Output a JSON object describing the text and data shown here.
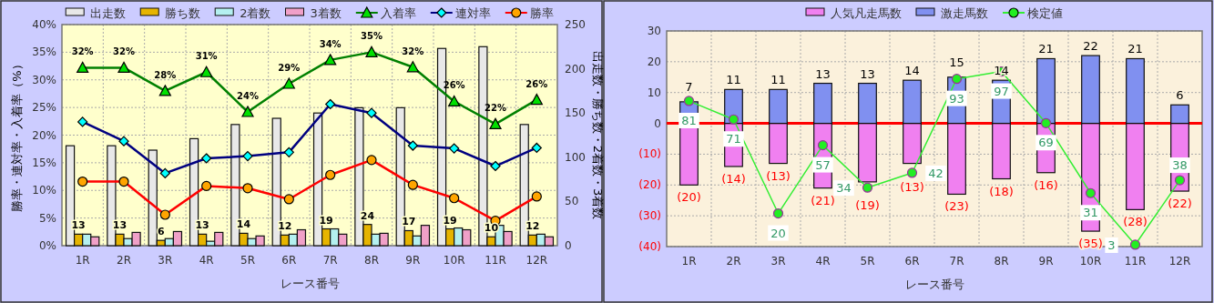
{
  "chart_data": [
    {
      "type": "bar",
      "categories": [
        "1R",
        "2R",
        "3R",
        "4R",
        "5R",
        "6R",
        "7R",
        "8R",
        "9R",
        "10R",
        "11R",
        "12R"
      ],
      "series": [
        {
          "name": "出走数",
          "axis": "y2",
          "color": "#e8e8e8",
          "values": [
            113,
            113,
            108,
            121,
            137,
            144,
            150,
            156,
            156,
            223,
            225,
            137
          ]
        },
        {
          "name": "勝ち数",
          "axis": "y2",
          "color": "#e6b400",
          "values": [
            13,
            13,
            6,
            13,
            14,
            12,
            19,
            24,
            17,
            19,
            10,
            12
          ],
          "value_labels": [
            "13",
            "13",
            "6",
            "13",
            "14",
            "12",
            "19",
            "24",
            "17",
            "19",
            "10",
            "12"
          ]
        },
        {
          "name": "2着数",
          "axis": "y2",
          "color": "#b4f0f0",
          "values": [
            13,
            8,
            8,
            5,
            8,
            13,
            19,
            13,
            11,
            20,
            23,
            13
          ]
        },
        {
          "name": "3着数",
          "axis": "y2",
          "color": "#f0a0c8",
          "values": [
            10,
            15,
            16,
            15,
            11,
            18,
            13,
            14,
            23,
            18,
            16,
            10
          ]
        },
        {
          "name": "入着率",
          "type": "line",
          "axis": "y",
          "color": "#008000",
          "marker": "triangle",
          "colors": [
            "#00e000",
            "#00e000",
            "#00e000",
            "#00e000",
            "#00e000",
            "#00e000",
            "#00e000",
            "#00e000",
            "#00e000",
            "#00e000",
            "#00e000",
            "#00e000"
          ],
          "values": [
            32.2,
            32.2,
            28.0,
            31.4,
            24.2,
            29.3,
            33.6,
            35.0,
            32.3,
            26.1,
            22.0,
            26.4
          ],
          "value_labels": [
            "32%",
            "32%",
            "28%",
            "31%",
            "24%",
            "29%",
            "34%",
            "35%",
            "32%",
            "26%",
            "22%",
            "26%"
          ]
        },
        {
          "name": "連対率",
          "type": "line",
          "axis": "y",
          "color": "#000080",
          "marker": "diamond",
          "colors": [
            "#00ffff",
            "#00ffff",
            "#00ffff",
            "#00ffff",
            "#00ffff",
            "#00ffff",
            "#00ffff",
            "#00ffff",
            "#00ffff",
            "#00ffff",
            "#00ffff",
            "#00ffff"
          ],
          "values": [
            22.4,
            18.9,
            13.1,
            15.8,
            16.2,
            16.9,
            25.6,
            24.0,
            18.1,
            17.6,
            14.4,
            17.7
          ]
        },
        {
          "name": "勝率",
          "type": "line",
          "axis": "y",
          "color": "#ff0000",
          "marker": "circle",
          "colors": [
            "#ffa500",
            "#ffa500",
            "#ffa500",
            "#ffa500",
            "#ffa500",
            "#ffa500",
            "#ffa500",
            "#ffa500",
            "#ffa500",
            "#ffa500",
            "#ffa500",
            "#ffa500"
          ],
          "values": [
            11.6,
            11.6,
            5.6,
            10.8,
            10.4,
            8.4,
            12.8,
            15.5,
            11.0,
            8.6,
            4.5,
            8.9
          ]
        }
      ],
      "ylim": [
        0,
        40
      ],
      "yticks": [
        {
          "value": 0,
          "label": "0%"
        },
        {
          "value": 5,
          "label": "5%"
        },
        {
          "value": 10,
          "label": "10%"
        },
        {
          "value": 15,
          "label": "15%"
        },
        {
          "value": 20,
          "label": "20%"
        },
        {
          "value": 25,
          "label": "25%"
        },
        {
          "value": 30,
          "label": "30%"
        },
        {
          "value": 35,
          "label": "35%"
        },
        {
          "value": 40,
          "label": "40%"
        }
      ],
      "y2lim": [
        0,
        250
      ],
      "y2ticks": [
        0,
        50,
        100,
        150,
        200,
        250
      ],
      "xlabel": "レース番号",
      "ylabel": "勝率・連対率・入着率（%）",
      "y2label": "出走数・勝ち数・2着数・3着数",
      "legend": "top",
      "grid": true
    },
    {
      "type": "bar",
      "stacked": true,
      "categories": [
        "1R",
        "2R",
        "3R",
        "4R",
        "5R",
        "6R",
        "7R",
        "8R",
        "9R",
        "10R",
        "11R",
        "12R"
      ],
      "series": [
        {
          "name": "人気凡走馬数",
          "color": "#f080f0",
          "values": [
            -20,
            -14,
            -13,
            -21,
            -19,
            -13,
            -23,
            -18,
            -16,
            -35,
            -28,
            -22
          ],
          "value_labels": [
            "(20)",
            "(14)",
            "(13)",
            "(21)",
            "(19)",
            "(13)",
            "(23)",
            "(18)",
            "(16)",
            "(35)",
            "(28)",
            "(22)"
          ]
        },
        {
          "name": "激走馬数",
          "color": "#8090f0",
          "values": [
            7,
            11,
            11,
            13,
            13,
            14,
            15,
            14,
            21,
            22,
            21,
            6
          ],
          "value_labels": [
            "7",
            "11",
            "11",
            "13",
            "13",
            "14",
            "15",
            "14",
            "21",
            "22",
            "21",
            "6"
          ]
        },
        {
          "name": "検定値",
          "type": "line",
          "axis": "y2",
          "color": "#33ee33",
          "marker": "circle",
          "colors": [
            "#22ee22",
            "#22ee22",
            "#22ee22",
            "#22ee22",
            "#22ee22",
            "#22ee22",
            "#22ee22",
            "#22ee22",
            "#22ee22",
            "#22ee22",
            "#22ee22",
            "#22ee22"
          ],
          "values": [
            81,
            71,
            20,
            57,
            34,
            42,
            93,
            97,
            69,
            31,
            3,
            38
          ],
          "value_labels": [
            "81",
            "71",
            "20",
            "57",
            "34",
            "42",
            "93",
            "97",
            "69",
            "31",
            "3",
            "38"
          ]
        }
      ],
      "ylim": [
        -40,
        30
      ],
      "yticks": [
        {
          "value": -40,
          "label": "(40)"
        },
        {
          "value": -30,
          "label": "(30)"
        },
        {
          "value": -20,
          "label": "(20)"
        },
        {
          "value": -10,
          "label": "(10)"
        },
        0,
        10,
        20,
        30
      ],
      "y2lim": [
        2,
        119
      ],
      "ref_lines": [
        {
          "axis": "y",
          "value": 0,
          "color": "#ff0000"
        }
      ],
      "xlabel": "レース番号",
      "legend": "top",
      "grid": true
    }
  ]
}
